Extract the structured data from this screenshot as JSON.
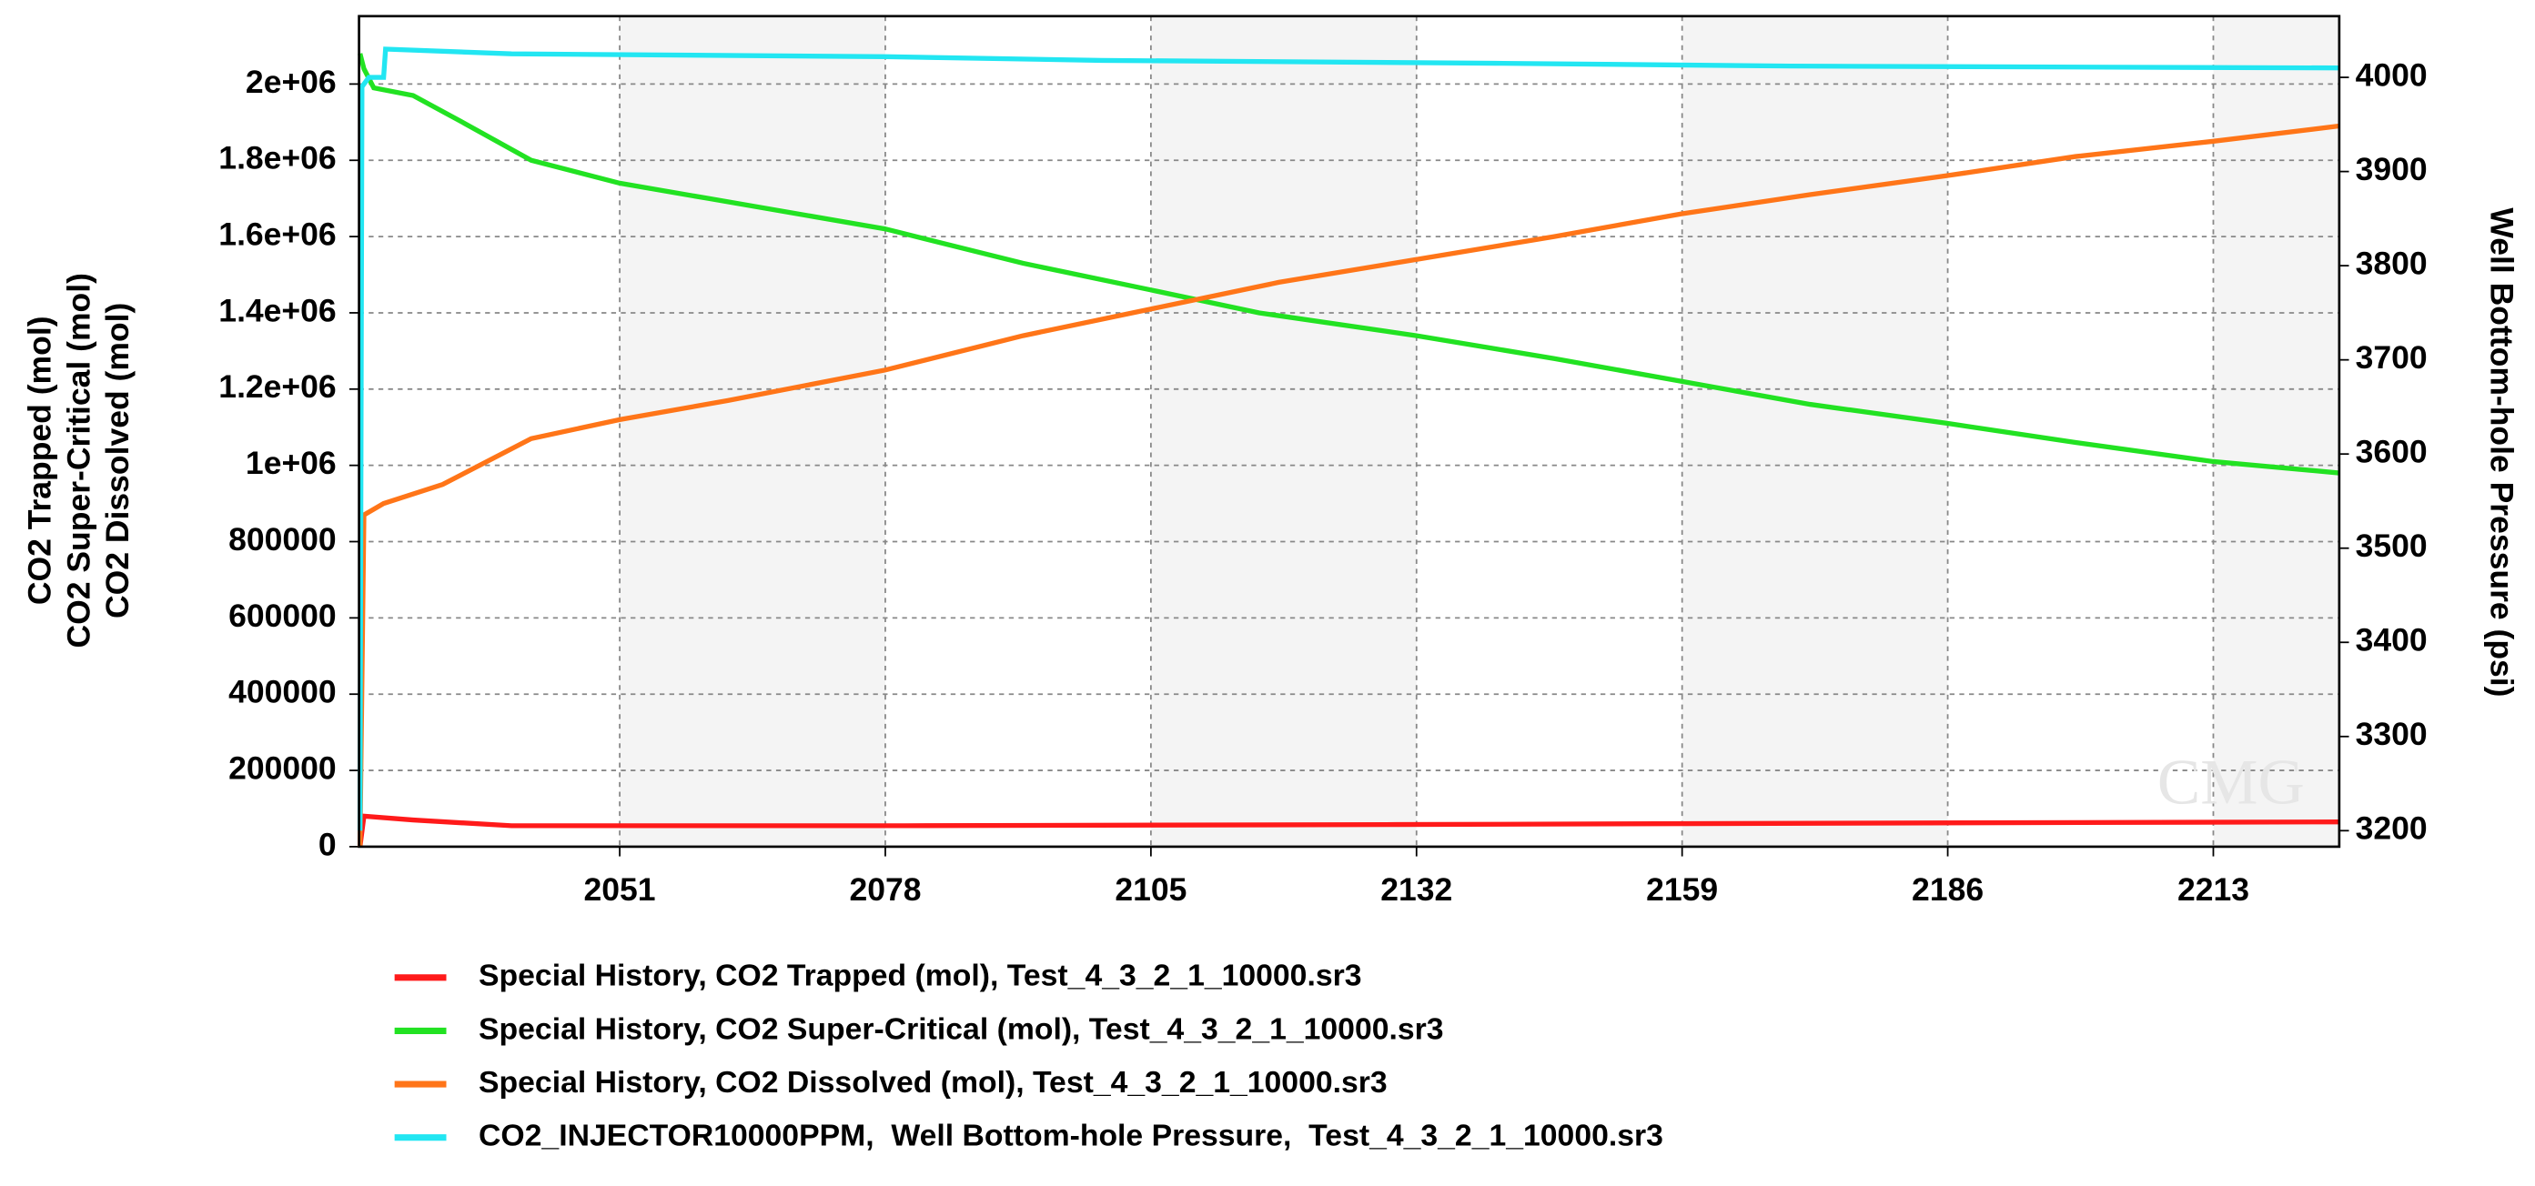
{
  "chart_data": {
    "type": "line",
    "y_label_lines": [
      "CO2 Trapped (mol)",
      "CO2 Super-Critical (mol)",
      "CO2 Dissolved (mol)"
    ],
    "y2_label": "Well Bottom-hole Pressure (psi)",
    "watermark": "CMG",
    "xlim": [
      2024.5,
      2225.8
    ],
    "xticks": [
      2051,
      2078,
      2105,
      2132,
      2159,
      2186,
      2213
    ],
    "ylim": [
      0,
      2178000
    ],
    "yticks": [
      0,
      200000,
      400000,
      600000,
      800000,
      {
        "value": 1000000,
        "label": "1e+06"
      },
      {
        "value": 1200000,
        "label": "1.2e+06"
      },
      {
        "value": 1400000,
        "label": "1.4e+06"
      },
      {
        "value": 1600000,
        "label": "1.6e+06"
      },
      {
        "value": 1800000,
        "label": "1.8e+06"
      },
      {
        "value": 2000000,
        "label": "2e+06"
      }
    ],
    "y2lim": [
      3183,
      4065
    ],
    "y2ticks": [
      3200,
      3300,
      3400,
      3500,
      3600,
      3700,
      3800,
      3900,
      4000
    ],
    "grid": true,
    "series": [
      {
        "name": "Special History, CO2 Trapped (mol), Test_4_3_2_1_10000.sr3",
        "color": "#ff1a1a",
        "x": [
          2024.6,
          2025,
          2030,
          2040,
          2080,
          2130,
          2180,
          2225.8
        ],
        "values": [
          0,
          80000,
          70000,
          55000,
          55000,
          58000,
          62000,
          65000
        ]
      },
      {
        "name": "Special History, CO2 Super-Critical (mol), Test_4_3_2_1_10000.sr3",
        "color": "#22e222",
        "x": [
          2024.6,
          2025,
          2026,
          2030,
          2035,
          2042,
          2051,
          2060,
          2078,
          2092,
          2105,
          2116,
          2132,
          2146,
          2159,
          2172,
          2186,
          2199,
          2213,
          2225.8
        ],
        "values": [
          2080000,
          2040000,
          1990000,
          1970000,
          1900000,
          1800000,
          1740000,
          1700000,
          1620000,
          1530000,
          1460000,
          1400000,
          1340000,
          1280000,
          1220000,
          1160000,
          1110000,
          1060000,
          1010000,
          980000
        ]
      },
      {
        "name": "Special History, CO2 Dissolved (mol), Test_4_3_2_1_10000.sr3",
        "color": "#ff7518",
        "x": [
          2024.6,
          2025,
          2027,
          2033,
          2042,
          2051,
          2062,
          2078,
          2092,
          2105,
          2118,
          2132,
          2146,
          2159,
          2172,
          2186,
          2199,
          2213,
          2225.8
        ],
        "values": [
          0,
          870000,
          900000,
          950000,
          1070000,
          1120000,
          1170000,
          1250000,
          1340000,
          1410000,
          1480000,
          1540000,
          1600000,
          1660000,
          1710000,
          1760000,
          1810000,
          1850000,
          1890000
        ]
      },
      {
        "name": "CO2_INJECTOR10000PPM,  Well Bottom-hole Pressure,  Test_4_3_2_1_10000.sr3",
        "color": "#22e6f2",
        "axis": "y2",
        "x": [
          2024.6,
          2024.8,
          2025.5,
          2027,
          2027.2,
          2040,
          2078,
          2100,
          2140,
          2170,
          2225.8
        ],
        "values": [
          3200,
          3990,
          4000,
          4000,
          4030,
          4025,
          4022,
          4018,
          4015,
          4012,
          4010
        ]
      }
    ]
  }
}
